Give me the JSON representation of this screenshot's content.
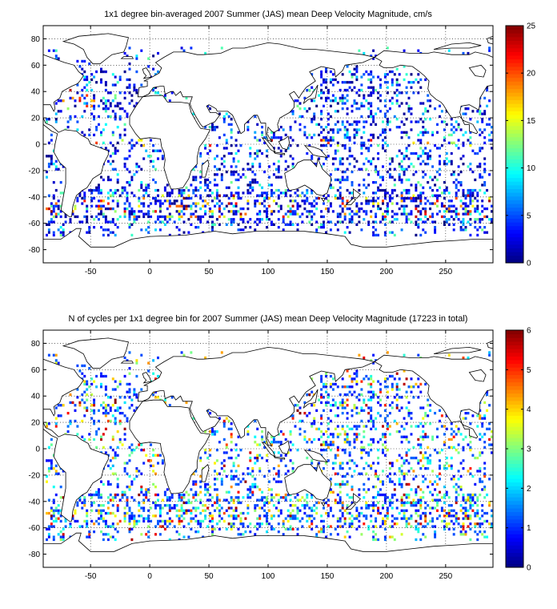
{
  "chart_data": [
    {
      "type": "heatmap",
      "title": "1x1 degree bin-averaged 2007 Summer (JAS) mean Deep Velocity Magnitude, cm/s",
      "xlim": [
        -90,
        290
      ],
      "ylim": [
        -90,
        90
      ],
      "x_ticks": [
        "-50",
        "0",
        "50",
        "100",
        "150",
        "200",
        "250"
      ],
      "x_tick_values": [
        -50,
        0,
        50,
        100,
        150,
        200,
        250
      ],
      "y_ticks": [
        "80",
        "60",
        "40",
        "20",
        "0",
        "-20",
        "-40",
        "-60",
        "-80"
      ],
      "y_tick_values": [
        80,
        60,
        40,
        20,
        0,
        -20,
        -40,
        -60,
        -80
      ],
      "colorbar": {
        "ticks": [
          "25",
          "20",
          "15",
          "10",
          "5",
          "0"
        ],
        "tick_values": [
          25,
          20,
          15,
          10,
          5,
          0
        ],
        "range": [
          0,
          25
        ],
        "colormap": "jet"
      },
      "grid": true,
      "coastlines": true
    },
    {
      "type": "heatmap",
      "title": "N of cycles per 1x1 degree bin for 2007 Summer (JAS) mean Deep Velocity Magnitude (17223 in total)",
      "xlim": [
        -90,
        290
      ],
      "ylim": [
        -90,
        90
      ],
      "x_ticks": [
        "-50",
        "0",
        "50",
        "100",
        "150",
        "200",
        "250"
      ],
      "x_tick_values": [
        -50,
        0,
        50,
        100,
        150,
        200,
        250
      ],
      "y_ticks": [
        "80",
        "60",
        "40",
        "20",
        "0",
        "-20",
        "-40",
        "-60",
        "-80"
      ],
      "y_tick_values": [
        80,
        60,
        40,
        20,
        0,
        -20,
        -40,
        -60,
        -80
      ],
      "colorbar": {
        "ticks": [
          "6",
          "5",
          "4",
          "3",
          "2",
          "1",
          "0"
        ],
        "tick_values": [
          6,
          5,
          4,
          3,
          2,
          1,
          0
        ],
        "range": [
          0,
          6
        ],
        "colormap": "jet"
      },
      "grid": true,
      "coastlines": true
    }
  ]
}
